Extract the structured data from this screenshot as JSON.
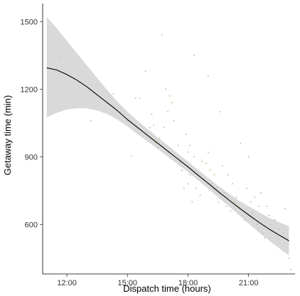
{
  "chart_data": {
    "type": "scatter",
    "title": "",
    "xlabel": "Dispatch time (hours)",
    "ylabel": "Getaway time (min)",
    "xlim": [
      10.8,
      23.3
    ],
    "ylim": [
      380,
      1580
    ],
    "x_ticks": [
      {
        "value": 12,
        "label": "12:00"
      },
      {
        "value": 15,
        "label": "15:00"
      },
      {
        "value": 18,
        "label": "18:00"
      },
      {
        "value": 21,
        "label": "21:00"
      }
    ],
    "y_ticks": [
      {
        "value": 600,
        "label": "600"
      },
      {
        "value": 900,
        "label": "900"
      },
      {
        "value": 1200,
        "label": "1200"
      },
      {
        "value": 1500,
        "label": "1500"
      }
    ],
    "grid": false,
    "colors": {
      "points": "#c9c28f",
      "fit_line": "#000000",
      "confidence_band": "#d9d9d9"
    },
    "points": [
      [
        11.7,
        1340
      ],
      [
        12.6,
        1230
      ],
      [
        13.2,
        1060
      ],
      [
        14.3,
        1180
      ],
      [
        15.0,
        1060
      ],
      [
        15.2,
        905
      ],
      [
        15.4,
        1160
      ],
      [
        15.6,
        1160
      ],
      [
        15.9,
        1280
      ],
      [
        16.1,
        1030
      ],
      [
        16.2,
        1090
      ],
      [
        16.3,
        1040
      ],
      [
        16.4,
        960
      ],
      [
        16.5,
        940
      ],
      [
        16.6,
        980
      ],
      [
        16.7,
        1440
      ],
      [
        16.8,
        1030
      ],
      [
        16.9,
        1200
      ],
      [
        17.0,
        1100
      ],
      [
        17.1,
        1170
      ],
      [
        17.2,
        1140
      ],
      [
        17.3,
        1060
      ],
      [
        17.5,
        950
      ],
      [
        17.6,
        880
      ],
      [
        17.7,
        840
      ],
      [
        17.8,
        760
      ],
      [
        17.9,
        1000
      ],
      [
        18.0,
        780
      ],
      [
        18.0,
        920
      ],
      [
        18.1,
        820
      ],
      [
        18.1,
        950
      ],
      [
        18.2,
        700
      ],
      [
        18.3,
        900
      ],
      [
        18.3,
        1350
      ],
      [
        18.4,
        760
      ],
      [
        18.5,
        820
      ],
      [
        18.6,
        730
      ],
      [
        18.7,
        880
      ],
      [
        18.8,
        800
      ],
      [
        18.9,
        870
      ],
      [
        19.0,
        920
      ],
      [
        19.0,
        1260
      ],
      [
        19.1,
        840
      ],
      [
        19.2,
        780
      ],
      [
        19.3,
        820
      ],
      [
        19.4,
        760
      ],
      [
        19.5,
        700
      ],
      [
        19.6,
        1100
      ],
      [
        19.7,
        860
      ],
      [
        19.8,
        740
      ],
      [
        19.9,
        680
      ],
      [
        20.0,
        820
      ],
      [
        20.1,
        660
      ],
      [
        20.2,
        780
      ],
      [
        20.3,
        700
      ],
      [
        20.4,
        720
      ],
      [
        20.5,
        680
      ],
      [
        20.6,
        960
      ],
      [
        20.7,
        640
      ],
      [
        20.8,
        620
      ],
      [
        20.9,
        760
      ],
      [
        21.0,
        900
      ],
      [
        21.1,
        700
      ],
      [
        21.2,
        650
      ],
      [
        21.3,
        720
      ],
      [
        21.4,
        600
      ],
      [
        21.5,
        680
      ],
      [
        21.6,
        740
      ],
      [
        21.7,
        560
      ],
      [
        21.8,
        540
      ],
      [
        21.9,
        680
      ],
      [
        22.0,
        640
      ],
      [
        22.1,
        600
      ],
      [
        22.3,
        620
      ],
      [
        22.5,
        580
      ],
      [
        22.7,
        560
      ],
      [
        22.8,
        670
      ],
      [
        23.0,
        450
      ],
      [
        23.1,
        400
      ]
    ],
    "fit": [
      {
        "x": 11.0,
        "y": 1295,
        "lo": 1075,
        "hi": 1520
      },
      {
        "x": 11.5,
        "y": 1285,
        "lo": 1095,
        "hi": 1470
      },
      {
        "x": 12.0,
        "y": 1265,
        "lo": 1110,
        "hi": 1415
      },
      {
        "x": 12.5,
        "y": 1240,
        "lo": 1115,
        "hi": 1360
      },
      {
        "x": 13.0,
        "y": 1210,
        "lo": 1115,
        "hi": 1305
      },
      {
        "x": 13.5,
        "y": 1175,
        "lo": 1105,
        "hi": 1250
      },
      {
        "x": 14.0,
        "y": 1140,
        "lo": 1090,
        "hi": 1195
      },
      {
        "x": 14.5,
        "y": 1105,
        "lo": 1065,
        "hi": 1145
      },
      {
        "x": 15.0,
        "y": 1065,
        "lo": 1035,
        "hi": 1100
      },
      {
        "x": 15.5,
        "y": 1030,
        "lo": 1000,
        "hi": 1060
      },
      {
        "x": 16.0,
        "y": 995,
        "lo": 968,
        "hi": 1023
      },
      {
        "x": 16.5,
        "y": 960,
        "lo": 935,
        "hi": 985
      },
      {
        "x": 17.0,
        "y": 925,
        "lo": 900,
        "hi": 950
      },
      {
        "x": 17.5,
        "y": 890,
        "lo": 866,
        "hi": 914
      },
      {
        "x": 18.0,
        "y": 855,
        "lo": 832,
        "hi": 878
      },
      {
        "x": 18.5,
        "y": 818,
        "lo": 796,
        "hi": 842
      },
      {
        "x": 19.0,
        "y": 782,
        "lo": 758,
        "hi": 806
      },
      {
        "x": 19.5,
        "y": 745,
        "lo": 720,
        "hi": 770
      },
      {
        "x": 20.0,
        "y": 710,
        "lo": 682,
        "hi": 738
      },
      {
        "x": 20.5,
        "y": 675,
        "lo": 643,
        "hi": 707
      },
      {
        "x": 21.0,
        "y": 642,
        "lo": 604,
        "hi": 680
      },
      {
        "x": 21.5,
        "y": 610,
        "lo": 565,
        "hi": 655
      },
      {
        "x": 22.0,
        "y": 580,
        "lo": 530,
        "hi": 630
      },
      {
        "x": 22.5,
        "y": 553,
        "lo": 495,
        "hi": 610
      },
      {
        "x": 23.0,
        "y": 527,
        "lo": 462,
        "hi": 592
      }
    ]
  }
}
